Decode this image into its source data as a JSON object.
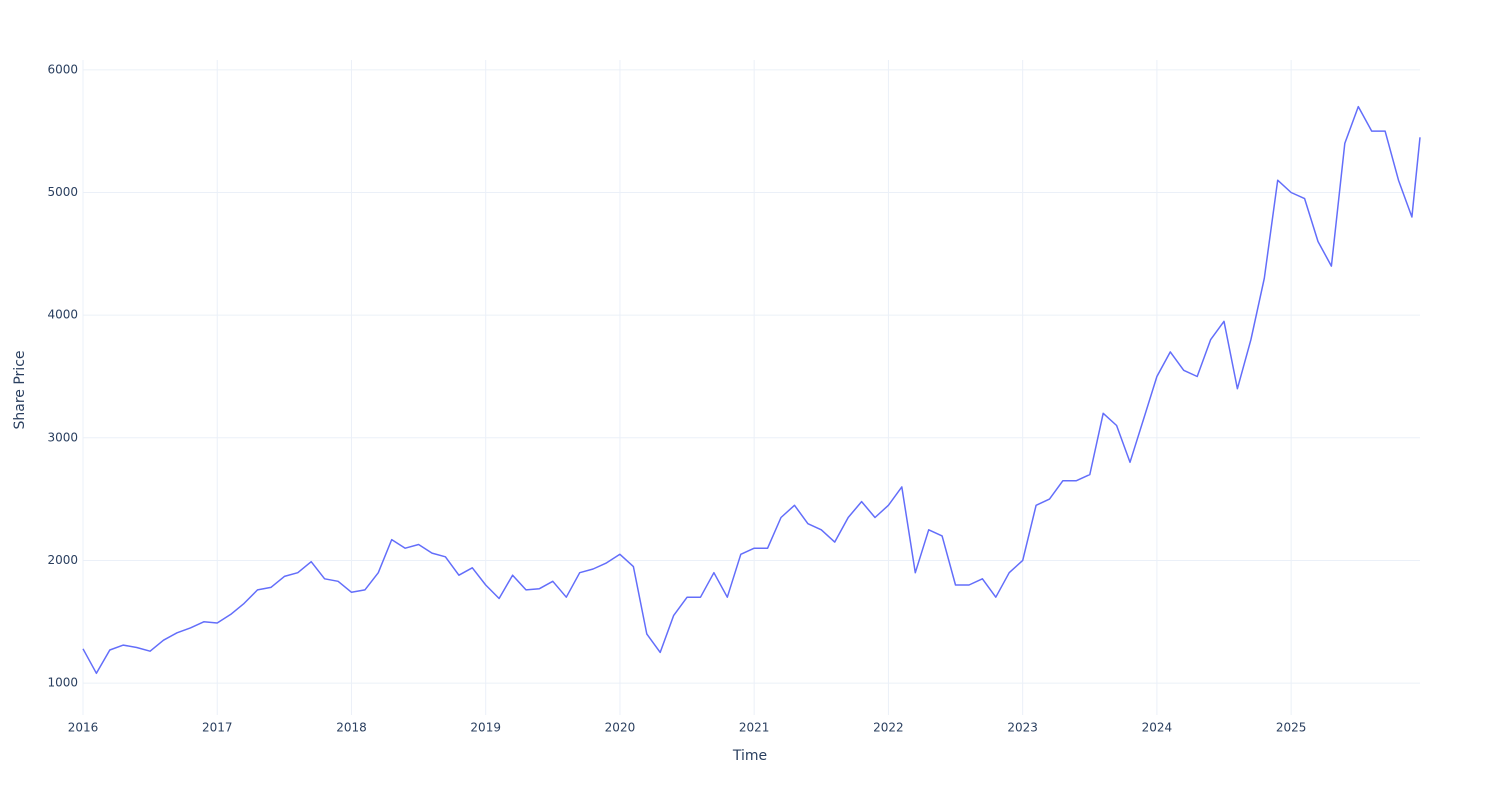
{
  "chart_data": {
    "type": "line",
    "x_label": "Time",
    "y_label": "Share Price",
    "x": [
      2016.0,
      2016.1,
      2016.2,
      2016.3,
      2016.4,
      2016.5,
      2016.6,
      2016.7,
      2016.8,
      2016.9,
      2017.0,
      2017.1,
      2017.2,
      2017.3,
      2017.4,
      2017.5,
      2017.6,
      2017.7,
      2017.8,
      2017.9,
      2018.0,
      2018.1,
      2018.2,
      2018.3,
      2018.4,
      2018.5,
      2018.6,
      2018.7,
      2018.8,
      2018.9,
      2019.0,
      2019.1,
      2019.2,
      2019.3,
      2019.4,
      2019.5,
      2019.6,
      2019.7,
      2019.8,
      2019.9,
      2020.0,
      2020.1,
      2020.2,
      2020.3,
      2020.4,
      2020.5,
      2020.6,
      2020.7,
      2020.8,
      2020.9,
      2021.0,
      2021.1,
      2021.2,
      2021.3,
      2021.4,
      2021.5,
      2021.6,
      2021.7,
      2021.8,
      2021.9,
      2022.0,
      2022.1,
      2022.2,
      2022.3,
      2022.4,
      2022.5,
      2022.6,
      2022.7,
      2022.8,
      2022.9,
      2023.0,
      2023.1,
      2023.2,
      2023.3,
      2023.4,
      2023.5,
      2023.6,
      2023.7,
      2023.8,
      2023.9,
      2024.0,
      2024.1,
      2024.2,
      2024.3,
      2024.4,
      2024.5,
      2024.6,
      2024.7,
      2024.8,
      2024.9,
      2025.0,
      2025.1,
      2025.2,
      2025.3,
      2025.4,
      2025.5,
      2025.6,
      2025.7,
      2025.8,
      2025.9,
      2025.96
    ],
    "series": [
      {
        "name": "Share Price",
        "color": "#636efa",
        "values": [
          1280,
          1080,
          1270,
          1310,
          1290,
          1260,
          1350,
          1410,
          1450,
          1500,
          1490,
          1560,
          1650,
          1760,
          1780,
          1870,
          1900,
          1990,
          1850,
          1830,
          1740,
          1760,
          1900,
          2170,
          2100,
          2130,
          2060,
          2030,
          1880,
          1940,
          1800,
          1690,
          1880,
          1760,
          1770,
          1830,
          1700,
          1900,
          1930,
          1980,
          2050,
          1950,
          1400,
          1250,
          1550,
          1700,
          1700,
          1900,
          1700,
          2050,
          2100,
          2100,
          2350,
          2450,
          2300,
          2250,
          2150,
          2350,
          2480,
          2350,
          2450,
          2600,
          1900,
          2250,
          2200,
          1800,
          1800,
          1850,
          1700,
          1900,
          2000,
          2450,
          2500,
          2650,
          2650,
          2700,
          3200,
          3100,
          2800,
          3150,
          3500,
          3700,
          3550,
          3500,
          3800,
          3950,
          3400,
          3800,
          4300,
          5100,
          5000,
          4950,
          4600,
          4400,
          5400,
          5700,
          5500,
          5500,
          5100,
          4800,
          5450
        ]
      }
    ],
    "xlim": [
      2016,
      2025.96
    ],
    "xticks": [
      2016,
      2017,
      2018,
      2019,
      2020,
      2021,
      2022,
      2023,
      2024,
      2025
    ],
    "ylim": [
      740,
      6080
    ],
    "yticks": [
      1000,
      2000,
      3000,
      4000,
      5000,
      6000
    ],
    "grid": true
  }
}
